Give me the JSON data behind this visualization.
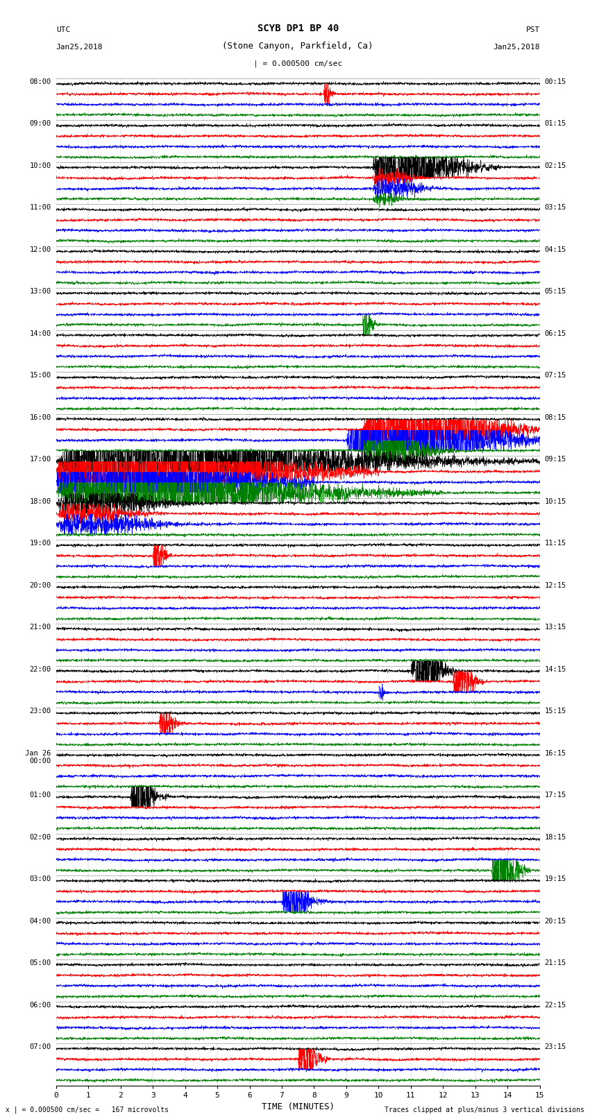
{
  "title_line1": "SCYB DP1 BP 40",
  "title_line2": "(Stone Canyon, Parkfield, Ca)",
  "scale_label": "| = 0.000500 cm/sec",
  "utc_label": "UTC",
  "utc_date": "Jan25,2018",
  "pst_label": "PST",
  "pst_date": "Jan25,2018",
  "xlabel": "TIME (MINUTES)",
  "bottom_left": "x | = 0.000500 cm/sec =   167 microvolts",
  "bottom_right": "Traces clipped at plus/minus 3 vertical divisions",
  "colors": [
    "black",
    "red",
    "blue",
    "green"
  ],
  "background": "white",
  "num_hours": 24,
  "traces_per_hour": 4,
  "fig_width": 8.5,
  "fig_height": 16.13,
  "dpi": 100,
  "left_labels": [
    "08:00",
    "09:00",
    "10:00",
    "11:00",
    "12:00",
    "13:00",
    "14:00",
    "15:00",
    "16:00",
    "17:00",
    "18:00",
    "19:00",
    "20:00",
    "21:00",
    "22:00",
    "23:00",
    "Jan 26\n00:00",
    "01:00",
    "02:00",
    "03:00",
    "04:00",
    "05:00",
    "06:00",
    "07:00"
  ],
  "right_labels": [
    "00:15",
    "01:15",
    "02:15",
    "03:15",
    "04:15",
    "05:15",
    "06:15",
    "07:15",
    "08:15",
    "09:15",
    "10:15",
    "11:15",
    "12:15",
    "13:15",
    "14:15",
    "15:15",
    "16:15",
    "17:15",
    "18:15",
    "19:15",
    "20:15",
    "21:15",
    "22:15",
    "23:15"
  ]
}
